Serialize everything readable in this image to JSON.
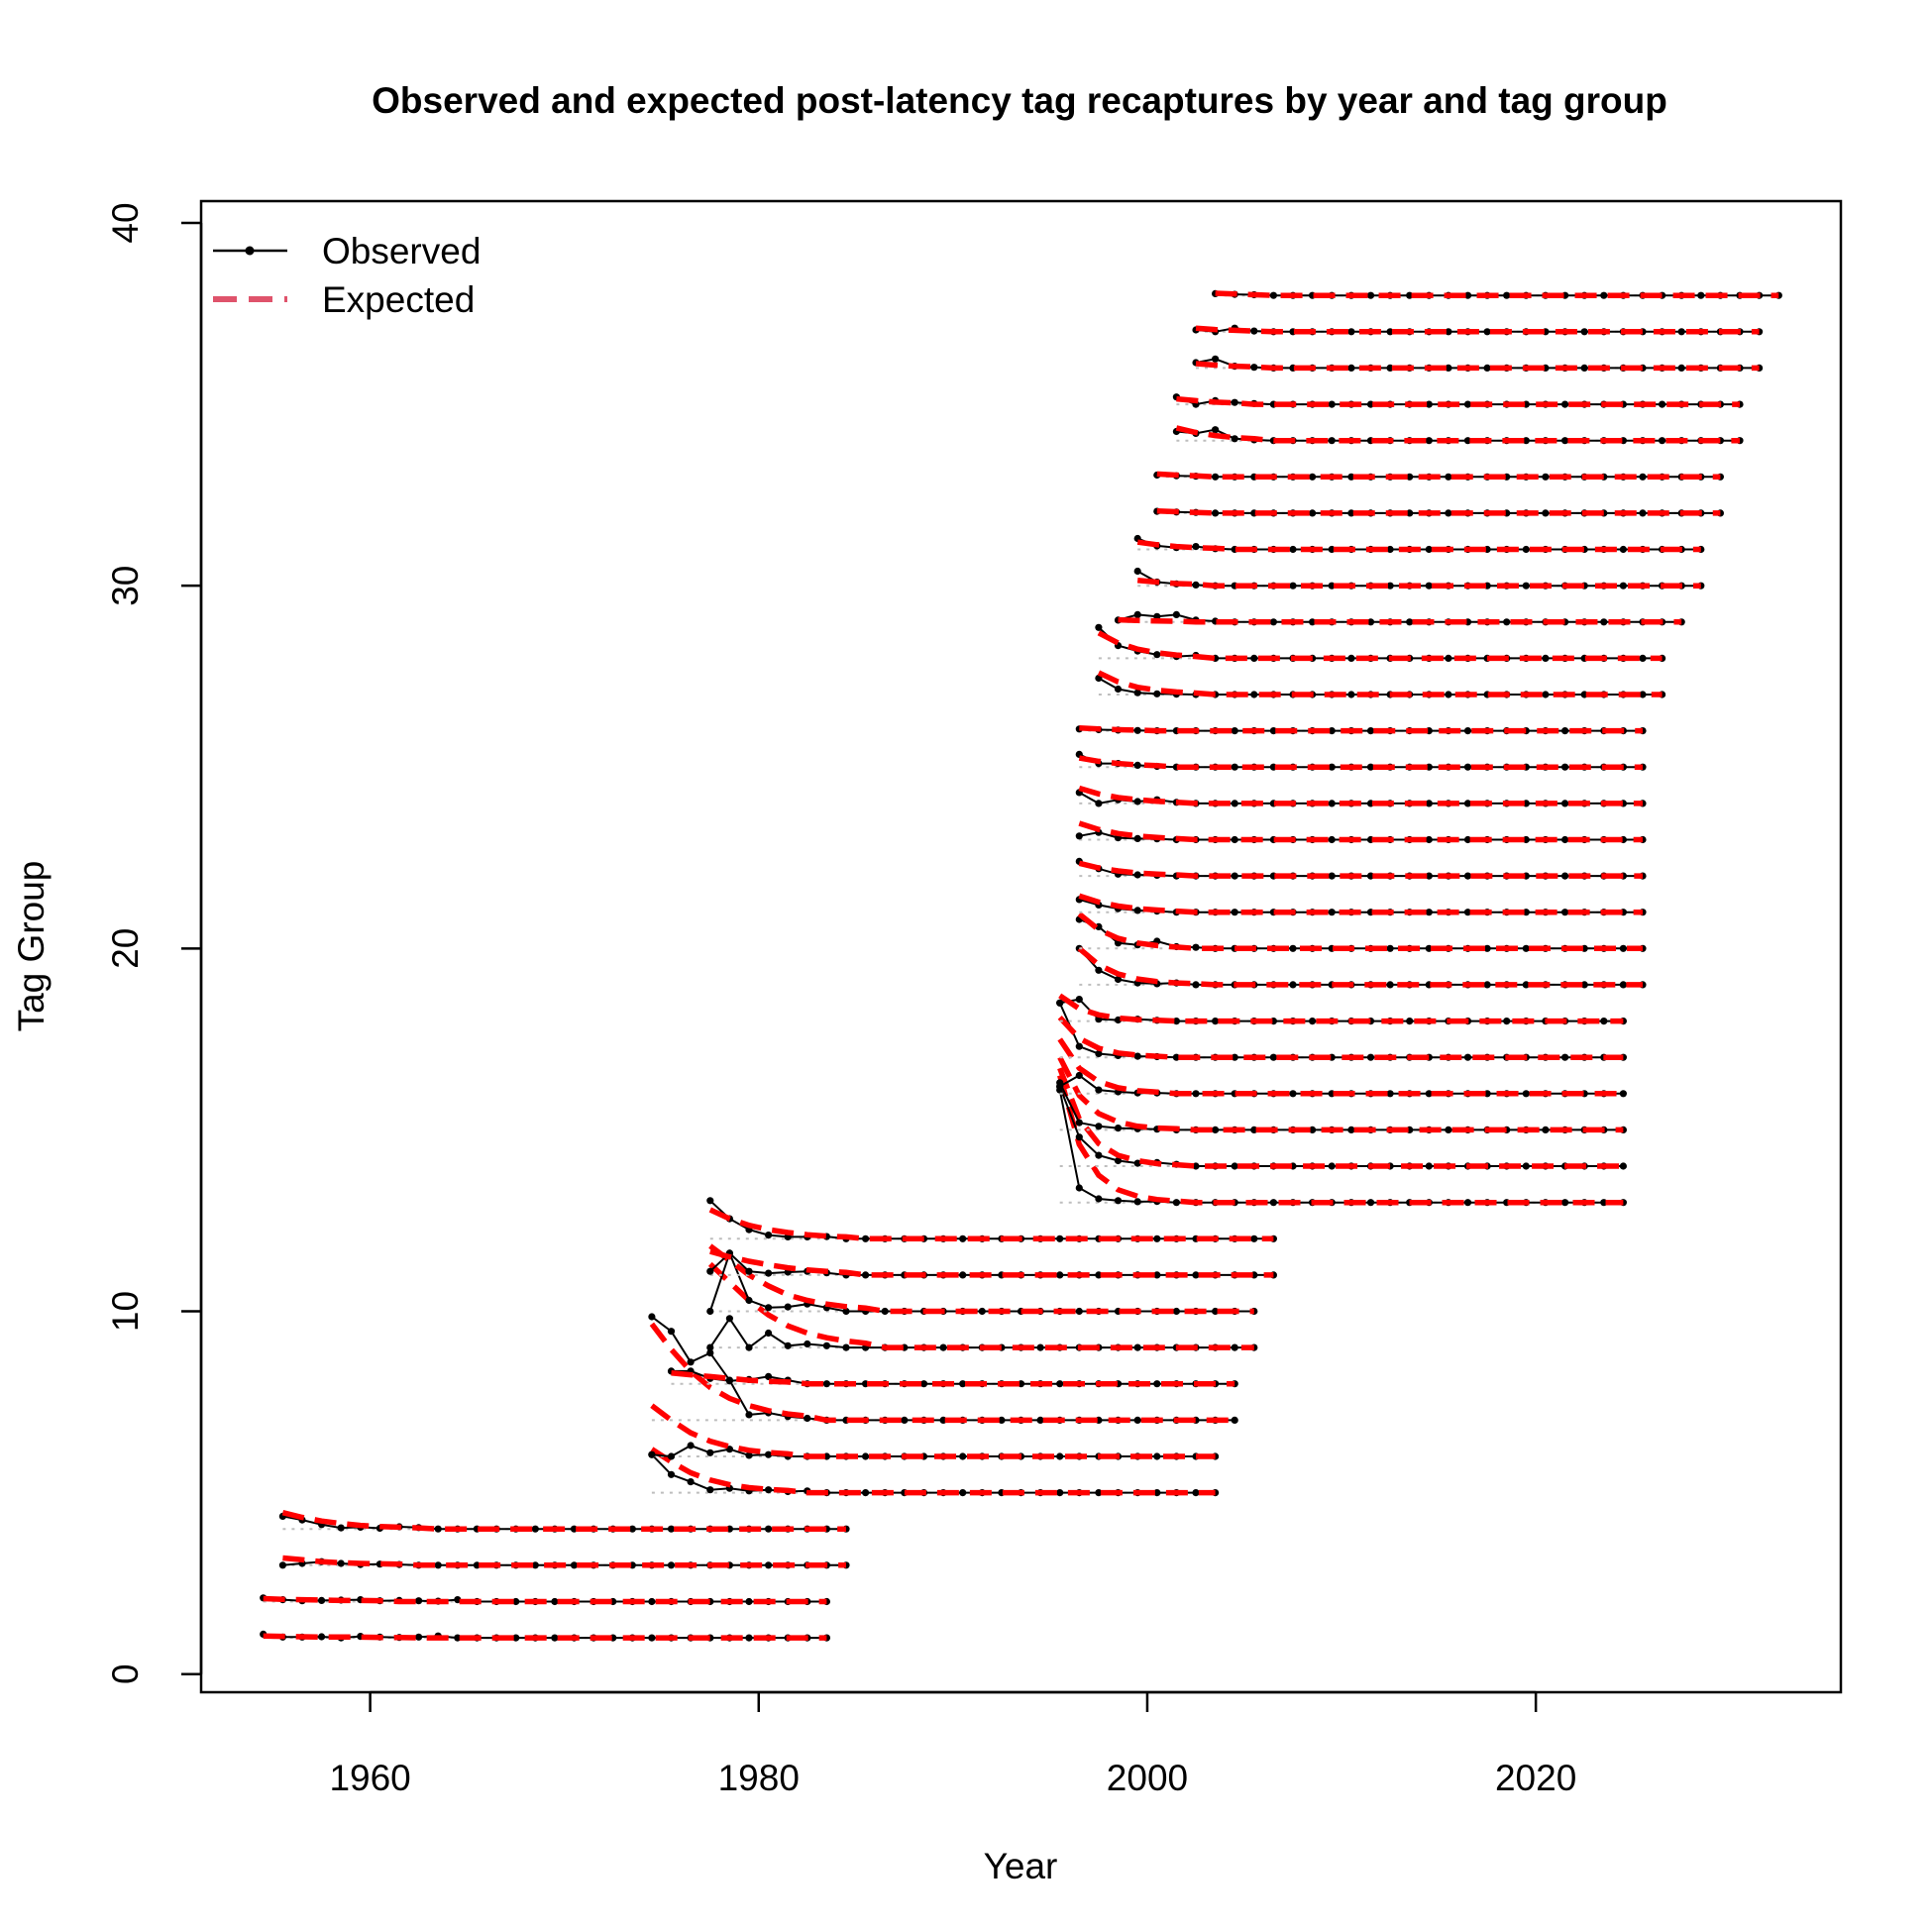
{
  "chart_data": {
    "type": "line",
    "title": "Observed and expected post-latency tag recaptures by year and tag group",
    "xlabel": "Year",
    "ylabel": "Tag Group",
    "xlim": [
      1951.3,
      2035.7
    ],
    "ylim": [
      -0.5,
      40.6
    ],
    "x_ticks": [
      1960,
      1980,
      2000,
      2020
    ],
    "y_ticks": [
      0,
      10,
      20,
      30,
      40
    ],
    "legend": {
      "position": "top-left",
      "entries": [
        {
          "label": "Observed",
          "color": "#000000",
          "style": "solid-with-points"
        },
        {
          "label": "Expected",
          "color": "#DF536B",
          "style": "dashed"
        }
      ]
    },
    "colors": {
      "observed": "#000000",
      "expected": "#FF0000",
      "baseline": "#BEBEBE"
    },
    "grid": false,
    "groups": [
      {
        "group": 1,
        "start": 1954.5,
        "end": 1983.5,
        "obs_init": [
          0.1,
          0.02,
          0.02,
          0.03,
          0.0,
          0.04,
          0.02,
          0.01,
          0.02,
          0.05
        ],
        "exp_init": [
          0.05,
          0.04,
          0.03,
          0.02,
          0.02,
          0.02,
          0.01,
          0.01
        ]
      },
      {
        "group": 2,
        "start": 1954.5,
        "end": 1983.5,
        "obs_init": [
          0.1,
          0.05,
          0.02,
          0.03,
          0.04,
          0.05,
          0.02,
          0.03,
          0.02,
          0.01,
          0.05
        ],
        "exp_init": [
          0.08,
          0.06,
          0.05,
          0.04,
          0.03,
          0.03,
          0.02
        ]
      },
      {
        "group": 3,
        "start": 1955.5,
        "end": 1984.5,
        "obs_init": [
          0.0,
          0.05,
          0.1,
          0.05,
          0.02,
          0.03,
          0.02
        ],
        "exp_init": [
          0.2,
          0.15,
          0.1,
          0.07,
          0.05,
          0.04,
          0.03
        ]
      },
      {
        "group": 4,
        "start": 1955.5,
        "end": 1984.5,
        "obs_init": [
          0.35,
          0.25,
          0.12,
          0.03,
          0.05,
          0.02,
          0.06,
          0.04
        ],
        "exp_init": [
          0.45,
          0.32,
          0.22,
          0.15,
          0.1,
          0.07,
          0.05,
          0.03
        ]
      },
      {
        "group": 5,
        "start": 1974.5,
        "end": 2003.5,
        "obs_init": [
          1.05,
          0.5,
          0.3,
          0.08,
          0.12,
          0.05,
          0.08,
          0.03,
          0.05
        ],
        "exp_init": [
          1.2,
          0.85,
          0.55,
          0.35,
          0.22,
          0.14,
          0.09,
          0.06
        ]
      },
      {
        "group": 6,
        "start": 1974.5,
        "end": 2003.5,
        "obs_init": [
          0.05,
          0.0,
          0.3,
          0.1,
          0.2,
          0.03,
          0.05
        ],
        "exp_init": [
          1.4,
          1.0,
          0.65,
          0.42,
          0.27,
          0.17,
          0.11,
          0.07
        ]
      },
      {
        "group": 7,
        "start": 1974.5,
        "end": 2004.5,
        "obs_init": [
          2.85,
          2.45,
          1.6,
          1.85,
          1.1,
          0.15,
          0.2,
          0.1,
          0.05
        ],
        "exp_init": [
          2.65,
          1.95,
          1.35,
          0.9,
          0.6,
          0.4,
          0.26,
          0.17,
          0.11
        ]
      },
      {
        "group": 8,
        "start": 1975.5,
        "end": 2004.5,
        "obs_init": [
          0.35,
          0.35,
          0.15,
          0.08,
          0.12,
          0.2,
          0.1
        ],
        "exp_init": [
          0.3,
          0.25,
          0.2,
          0.15,
          0.1,
          0.07,
          0.05
        ]
      },
      {
        "group": 9,
        "start": 1977.5,
        "end": 2005.5,
        "obs_init": [
          0.0,
          0.8,
          0.0,
          0.4,
          0.05,
          0.1,
          0.05
        ],
        "exp_init": [
          2.3,
          1.8,
          1.3,
          0.9,
          0.6,
          0.4,
          0.27,
          0.18,
          0.12
        ]
      },
      {
        "group": 10,
        "start": 1977.5,
        "end": 2005.5,
        "obs_init": [
          0.0,
          1.6,
          0.3,
          0.1,
          0.12,
          0.2,
          0.1
        ],
        "exp_init": [
          1.8,
          1.4,
          1.0,
          0.7,
          0.45,
          0.3,
          0.2,
          0.13,
          0.09
        ]
      },
      {
        "group": 11,
        "start": 1977.5,
        "end": 2006.5,
        "obs_init": [
          0.1,
          0.6,
          0.1,
          0.05,
          0.08,
          0.1,
          0.06
        ],
        "exp_init": [
          0.65,
          0.5,
          0.38,
          0.28,
          0.2,
          0.14,
          0.1,
          0.07
        ]
      },
      {
        "group": 12,
        "start": 1977.5,
        "end": 2006.5,
        "obs_init": [
          1.05,
          0.55,
          0.25,
          0.1,
          0.05,
          0.05,
          0.06
        ],
        "exp_init": [
          0.8,
          0.55,
          0.37,
          0.25,
          0.17,
          0.11,
          0.07,
          0.05
        ]
      },
      {
        "group": 13,
        "start": 1995.5,
        "end": 2024.5,
        "obs_init": [
          3.1,
          0.4,
          0.1,
          0.05,
          0.02,
          0.03
        ],
        "exp_init": [
          3.5,
          1.6,
          0.75,
          0.35,
          0.17,
          0.08,
          0.04
        ]
      },
      {
        "group": 14,
        "start": 1995.5,
        "end": 2024.5,
        "obs_init": [
          2.2,
          0.8,
          0.3,
          0.15,
          0.08,
          0.1,
          0.05
        ],
        "exp_init": [
          2.7,
          1.3,
          0.62,
          0.3,
          0.15,
          0.07,
          0.04
        ]
      },
      {
        "group": 15,
        "start": 1995.5,
        "end": 2024.5,
        "obs_init": [
          1.3,
          0.2,
          0.1,
          0.05,
          0.03,
          0.02
        ],
        "exp_init": [
          2.0,
          0.95,
          0.45,
          0.22,
          0.1,
          0.05,
          0.03
        ]
      },
      {
        "group": 16,
        "start": 1995.5,
        "end": 2024.5,
        "obs_init": [
          0.2,
          0.5,
          0.1,
          0.05,
          0.02,
          0.02
        ],
        "exp_init": [
          1.5,
          0.7,
          0.33,
          0.16,
          0.08,
          0.04
        ]
      },
      {
        "group": 17,
        "start": 1995.5,
        "end": 2024.5,
        "obs_init": [
          1.5,
          0.3,
          0.1,
          0.05,
          0.03,
          0.02
        ],
        "exp_init": [
          1.1,
          0.52,
          0.25,
          0.12,
          0.06,
          0.03
        ]
      },
      {
        "group": 18,
        "start": 1995.5,
        "end": 2024.5,
        "obs_init": [
          0.5,
          0.6,
          0.05,
          0.03,
          0.05,
          0.02
        ],
        "exp_init": [
          0.7,
          0.34,
          0.17,
          0.08,
          0.04,
          0.02
        ]
      },
      {
        "group": 19,
        "start": 1996.5,
        "end": 2025.5,
        "obs_init": [
          1.0,
          0.4,
          0.15,
          0.05,
          0.03,
          0.05
        ],
        "exp_init": [
          1.0,
          0.55,
          0.3,
          0.16,
          0.09,
          0.05,
          0.03
        ]
      },
      {
        "group": 20,
        "start": 1996.5,
        "end": 2025.5,
        "obs_init": [
          0.8,
          0.6,
          0.15,
          0.1,
          0.2,
          0.05,
          0.03
        ],
        "exp_init": [
          0.95,
          0.52,
          0.28,
          0.15,
          0.08,
          0.04
        ]
      },
      {
        "group": 21,
        "start": 1996.5,
        "end": 2025.5,
        "obs_init": [
          0.35,
          0.2,
          0.1,
          0.05,
          0.03
        ],
        "exp_init": [
          0.45,
          0.28,
          0.17,
          0.1,
          0.06,
          0.03
        ]
      },
      {
        "group": 22,
        "start": 1996.5,
        "end": 2025.5,
        "obs_init": [
          0.4,
          0.2,
          0.05,
          0.03,
          0.02
        ],
        "exp_init": [
          0.35,
          0.22,
          0.14,
          0.08,
          0.05,
          0.03
        ]
      },
      {
        "group": 23,
        "start": 1996.5,
        "end": 2025.5,
        "obs_init": [
          0.1,
          0.2,
          0.05,
          0.03,
          0.02
        ],
        "exp_init": [
          0.45,
          0.28,
          0.17,
          0.1,
          0.06,
          0.03
        ]
      },
      {
        "group": 24,
        "start": 1996.5,
        "end": 2025.5,
        "obs_init": [
          0.3,
          0.0,
          0.1,
          0.05,
          0.1,
          0.03
        ],
        "exp_init": [
          0.42,
          0.26,
          0.16,
          0.1,
          0.06,
          0.03
        ]
      },
      {
        "group": 25,
        "start": 1996.5,
        "end": 2025.5,
        "obs_init": [
          0.35,
          0.1,
          0.1,
          0.05,
          0.02
        ],
        "exp_init": [
          0.25,
          0.16,
          0.1,
          0.06,
          0.04
        ]
      },
      {
        "group": 26,
        "start": 1996.5,
        "end": 2025.5,
        "obs_init": [
          0.05,
          0.03,
          0.02,
          0.01
        ],
        "exp_init": [
          0.08,
          0.05,
          0.03,
          0.02
        ]
      },
      {
        "group": 27,
        "start": 1997.5,
        "end": 2026.5,
        "obs_init": [
          0.45,
          0.15,
          0.05,
          0.02,
          0.01
        ],
        "exp_init": [
          0.6,
          0.35,
          0.2,
          0.12,
          0.07,
          0.04
        ]
      },
      {
        "group": 28,
        "start": 1997.5,
        "end": 2026.5,
        "obs_init": [
          0.85,
          0.35,
          0.2,
          0.1,
          0.05,
          0.08
        ],
        "exp_init": [
          0.7,
          0.42,
          0.25,
          0.15,
          0.09,
          0.05
        ]
      },
      {
        "group": 29,
        "start": 1998.5,
        "end": 2027.5,
        "obs_init": [
          0.05,
          0.2,
          0.15,
          0.2,
          0.05,
          0.02
        ],
        "exp_init": [
          0.06,
          0.04,
          0.03,
          0.02
        ]
      },
      {
        "group": 30,
        "start": 1999.5,
        "end": 2028.5,
        "obs_init": [
          0.4,
          0.1,
          0.05,
          0.02
        ],
        "exp_init": [
          0.15,
          0.1,
          0.06,
          0.04
        ]
      },
      {
        "group": 31,
        "start": 1999.5,
        "end": 2028.5,
        "obs_init": [
          0.3,
          0.1,
          0.05,
          0.08,
          0.02
        ],
        "exp_init": [
          0.2,
          0.13,
          0.08,
          0.05,
          0.03
        ]
      },
      {
        "group": 32,
        "start": 2000.5,
        "end": 2029.5,
        "obs_init": [
          0.05,
          0.03,
          0.02
        ],
        "exp_init": [
          0.06,
          0.04,
          0.02
        ]
      },
      {
        "group": 33,
        "start": 2000.5,
        "end": 2029.5,
        "obs_init": [
          0.05,
          0.03,
          0.02
        ],
        "exp_init": [
          0.08,
          0.05,
          0.03
        ]
      },
      {
        "group": 34,
        "start": 2001.5,
        "end": 2030.5,
        "obs_init": [
          0.25,
          0.2,
          0.3,
          0.05,
          0.02
        ],
        "exp_init": [
          0.35,
          0.22,
          0.14,
          0.08,
          0.05
        ]
      },
      {
        "group": 35,
        "start": 2001.5,
        "end": 2030.5,
        "obs_init": [
          0.2,
          0.0,
          0.1,
          0.05,
          0.02
        ],
        "exp_init": [
          0.15,
          0.1,
          0.06,
          0.04
        ]
      },
      {
        "group": 36,
        "start": 2002.5,
        "end": 2031.5,
        "obs_init": [
          0.15,
          0.25,
          0.05,
          0.02
        ],
        "exp_init": [
          0.12,
          0.08,
          0.05,
          0.03
        ]
      },
      {
        "group": 37,
        "start": 2002.5,
        "end": 2031.5,
        "obs_init": [
          0.05,
          0.0,
          0.1,
          0.02
        ],
        "exp_init": [
          0.1,
          0.06,
          0.04,
          0.02
        ]
      },
      {
        "group": 38,
        "start": 2003.5,
        "end": 2032.5,
        "obs_init": [
          0.05,
          0.03,
          0.02
        ],
        "exp_init": [
          0.06,
          0.04,
          0.02
        ]
      }
    ]
  }
}
